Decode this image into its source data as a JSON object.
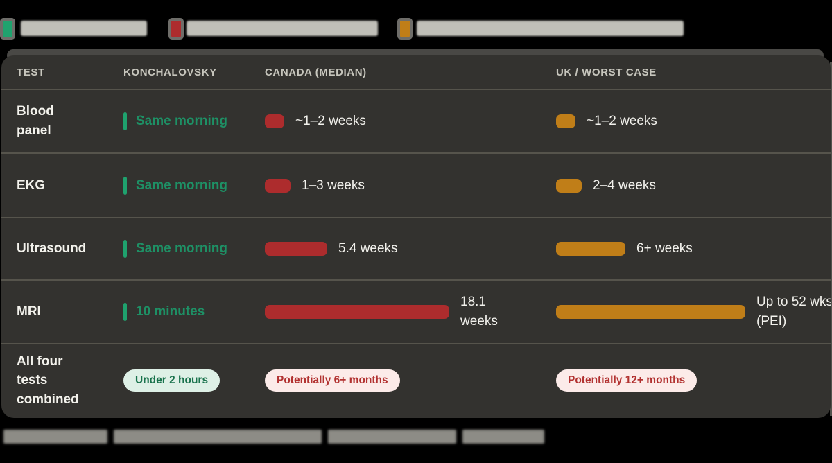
{
  "colors": {
    "green": "#1fa26e",
    "green_text": "#1e9065",
    "red": "#ad2c2d",
    "orange": "#c07e18",
    "pill_green_bg": "#def0e6",
    "pill_green_text": "#19724c",
    "pill_red_bg": "#fcebe9",
    "pill_red_text": "#b23231"
  },
  "legend": {
    "items": [
      {
        "id": "green-series",
        "color": "#1fa26e",
        "label_redacted": true
      },
      {
        "id": "red-series",
        "color": "#ad2c2d",
        "label_redacted": true
      },
      {
        "id": "orange-series",
        "color": "#c07e18",
        "label_redacted": true
      }
    ]
  },
  "table": {
    "headers": [
      "TEST",
      "KONCHALOVSKY",
      "CANADA (MEDIAN)",
      "UK / WORST CASE"
    ],
    "rows": [
      {
        "test": "Blood panel",
        "k_text": "Same morning",
        "c_text": "~1–2 weeks",
        "c_bar": 28,
        "u_text": "~1–2 weeks",
        "u_bar": 28
      },
      {
        "test": "EKG",
        "k_text": "Same morning",
        "c_text": "1–3 weeks",
        "c_bar": 37,
        "u_text": "2–4 weeks",
        "u_bar": 37
      },
      {
        "test": "Ultrasound",
        "k_text": "Same morning",
        "c_text": "5.4 weeks",
        "c_bar": 90,
        "u_text": "6+ weeks",
        "u_bar": 100
      },
      {
        "test": "MRI",
        "k_text": "10 minutes",
        "c_text": "18.1 weeks",
        "c_bar": 266,
        "u_text": "Up to 52 wks (PEI)",
        "u_bar": 273
      },
      {
        "test": "All four tests combined",
        "k_pill": "Under 2 hours",
        "c_pill": "Potentially 6+ months",
        "u_pill": "Potentially 12+ months"
      }
    ]
  },
  "footer": {
    "caption_redacted": true
  },
  "chart_data": {
    "type": "table",
    "title": "",
    "columns": [
      "TEST",
      "KONCHALOVSKY",
      "CANADA (MEDIAN)",
      "UK / WORST CASE"
    ],
    "rows": [
      [
        "Blood panel",
        "Same morning",
        "~1–2 weeks",
        "~1–2 weeks"
      ],
      [
        "EKG",
        "Same morning",
        "1–3 weeks",
        "2–4 weeks"
      ],
      [
        "Ultrasound",
        "Same morning",
        "5.4 weeks",
        "6+ weeks"
      ],
      [
        "MRI",
        "10 minutes",
        "18.1 weeks",
        "Up to 52 wks (PEI)"
      ],
      [
        "All four tests combined",
        "Under 2 hours",
        "Potentially 6+ months",
        "Potentially 12+ months"
      ]
    ],
    "series_colors": {
      "konchalovsky": "#1fa26e",
      "canada": "#ad2c2d",
      "uk": "#c07e18"
    },
    "notes": "Legend labels (top) and footer caption (bottom) are blurred/illegible in the source image"
  }
}
